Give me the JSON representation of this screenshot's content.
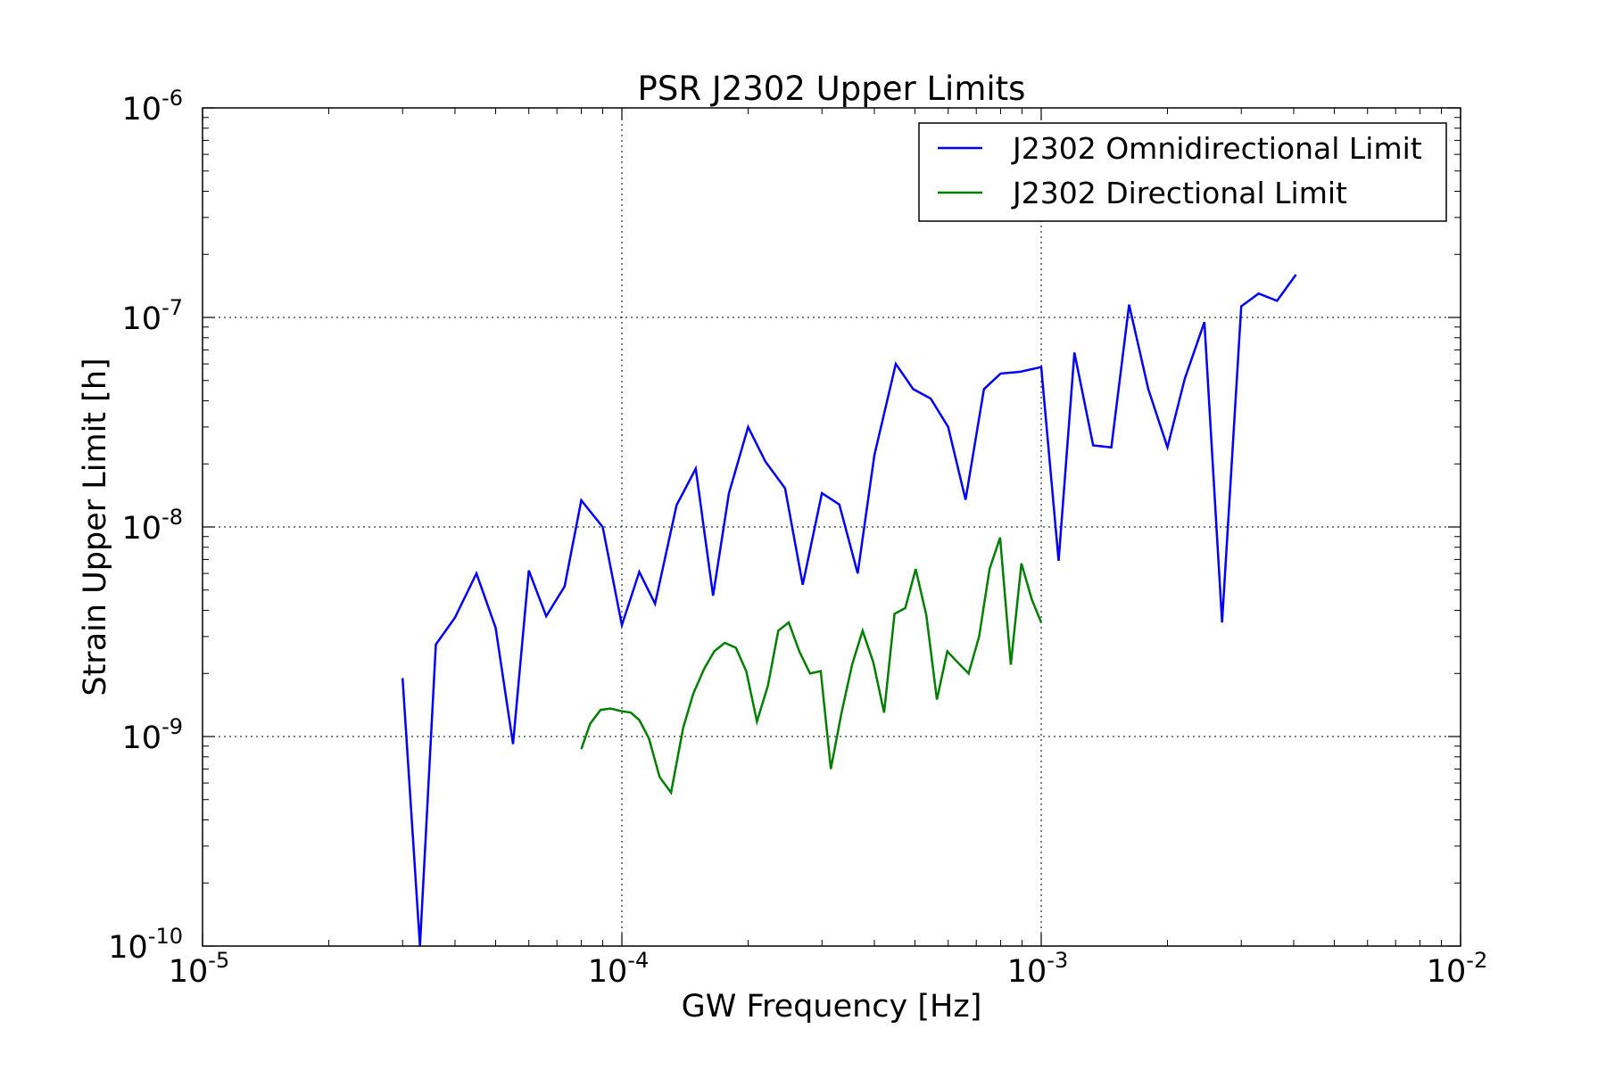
{
  "chart_data": {
    "type": "line",
    "title": "PSR J2302 Upper Limits",
    "xlabel": "GW Frequency [Hz]",
    "ylabel": "Strain Upper Limit [h]",
    "xscale": "log",
    "yscale": "log",
    "xlim": [
      1e-05,
      0.01
    ],
    "ylim": [
      1e-10,
      1e-06
    ],
    "x_ticks": [
      {
        "base": "10",
        "exp": "-5"
      },
      {
        "base": "10",
        "exp": "-4"
      },
      {
        "base": "10",
        "exp": "-3"
      },
      {
        "base": "10",
        "exp": "-2"
      }
    ],
    "y_ticks": [
      {
        "base": "10",
        "exp": "-10"
      },
      {
        "base": "10",
        "exp": "-9"
      },
      {
        "base": "10",
        "exp": "-8"
      },
      {
        "base": "10",
        "exp": "-7"
      },
      {
        "base": "10",
        "exp": "-6"
      }
    ],
    "grid": true,
    "legend_position": "top-right",
    "series": [
      {
        "name": "J2302 Omnidirectional Limit",
        "color": "#0000ff",
        "x": [
          3e-05,
          3.3e-05,
          3.6e-05,
          4e-05,
          4.5e-05,
          5e-05,
          5.5e-05,
          6e-05,
          6.6e-05,
          7.3e-05,
          8e-05,
          9e-05,
          0.0001,
          0.00011,
          0.00012,
          0.000135,
          0.00015,
          0.000165,
          0.00018,
          0.0002,
          0.00022,
          0.000245,
          0.00027,
          0.0003,
          0.00033,
          0.000365,
          0.0004,
          0.00045,
          0.000495,
          0.000545,
          0.0006,
          0.00066,
          0.00073,
          0.0008,
          0.00089,
          0.001,
          0.0011,
          0.0012,
          0.00133,
          0.00147,
          0.00162,
          0.0018,
          0.002,
          0.0022,
          0.00245,
          0.0027,
          0.003,
          0.0033,
          0.00365,
          0.00405
        ],
        "y": [
          1.9e-09,
          1e-10,
          2.75e-09,
          3.7e-09,
          6e-09,
          3.3e-09,
          9.2e-10,
          6.2e-09,
          3.75e-09,
          5.2e-09,
          1.34e-08,
          1e-08,
          3.4e-09,
          6.1e-09,
          4.3e-09,
          1.27e-08,
          1.9e-08,
          4.7e-09,
          1.45e-08,
          3e-08,
          2.05e-08,
          1.53e-08,
          5.3e-09,
          1.45e-08,
          1.28e-08,
          6e-09,
          2.2e-08,
          6e-08,
          4.55e-08,
          4.1e-08,
          3e-08,
          1.35e-08,
          4.55e-08,
          5.4e-08,
          5.5e-08,
          5.8e-08,
          6.9e-09,
          6.8e-08,
          2.45e-08,
          2.4e-08,
          1.15e-07,
          4.55e-08,
          2.4e-08,
          5.1e-08,
          9.5e-08,
          3.5e-09,
          1.13e-07,
          1.3e-07,
          1.2e-07,
          1.6e-07
        ]
      },
      {
        "name": "J2302 Directional Limit",
        "color": "#007f00",
        "x": [
          8e-05,
          8.4e-05,
          8.9e-05,
          9.4e-05,
          0.0001,
          0.000105,
          0.00011,
          0.000116,
          0.000123,
          0.000131,
          0.00014,
          0.000148,
          0.000157,
          0.000166,
          0.000176,
          0.000187,
          0.000198,
          0.00021,
          0.000223,
          0.000236,
          0.00025,
          0.000265,
          0.000281,
          0.000298,
          0.000315,
          0.000334,
          0.000354,
          0.000375,
          0.000398,
          0.000422,
          0.000447,
          0.000474,
          0.000502,
          0.000532,
          0.000564,
          0.000597,
          0.000633,
          0.000671,
          0.000711,
          0.000753,
          0.000798,
          0.000846,
          0.000897,
          0.00095,
          0.001
        ],
        "y": [
          8.7e-10,
          1.15e-09,
          1.34e-09,
          1.36e-09,
          1.32e-09,
          1.3e-09,
          1.2e-09,
          9.8e-10,
          6.4e-10,
          5.4e-10,
          1.1e-09,
          1.6e-09,
          2.1e-09,
          2.55e-09,
          2.8e-09,
          2.65e-09,
          2.05e-09,
          1.18e-09,
          1.75e-09,
          3.2e-09,
          3.5e-09,
          2.55e-09,
          2e-09,
          2.05e-09,
          7e-10,
          1.3e-09,
          2.2e-09,
          3.2e-09,
          2.25e-09,
          1.3e-09,
          3.85e-09,
          4.1e-09,
          6.3e-09,
          3.8e-09,
          1.5e-09,
          2.55e-09,
          2.25e-09,
          2e-09,
          3e-09,
          6.3e-09,
          8.9e-09,
          2.2e-09,
          6.7e-09,
          4.5e-09,
          3.5e-09
        ]
      }
    ]
  }
}
